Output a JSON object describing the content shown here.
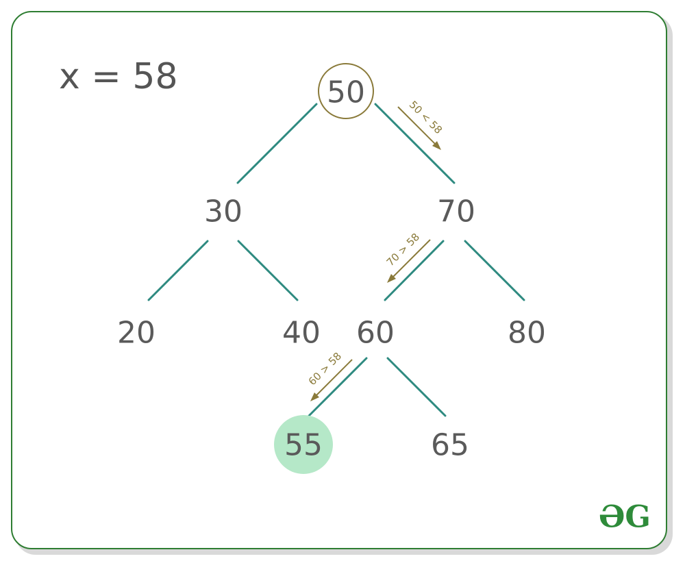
{
  "title": "x = 58",
  "nodes": {
    "n50": "50",
    "n30": "30",
    "n70": "70",
    "n20": "20",
    "n40": "40",
    "n60": "60",
    "n80": "80",
    "n55": "55",
    "n65": "65"
  },
  "comparisons": {
    "c1": "50 < 58",
    "c2": "70 > 58",
    "c3": "60 > 58"
  },
  "visited_node": "50",
  "found_node": "55",
  "logo": "ƏG",
  "colors": {
    "border": "#2e7d32",
    "edge": "#2e8a80",
    "path": "#8a7a3a",
    "found_fill": "#b5e8c8",
    "text": "#5a5a5a",
    "logo": "#2e8b3a"
  }
}
